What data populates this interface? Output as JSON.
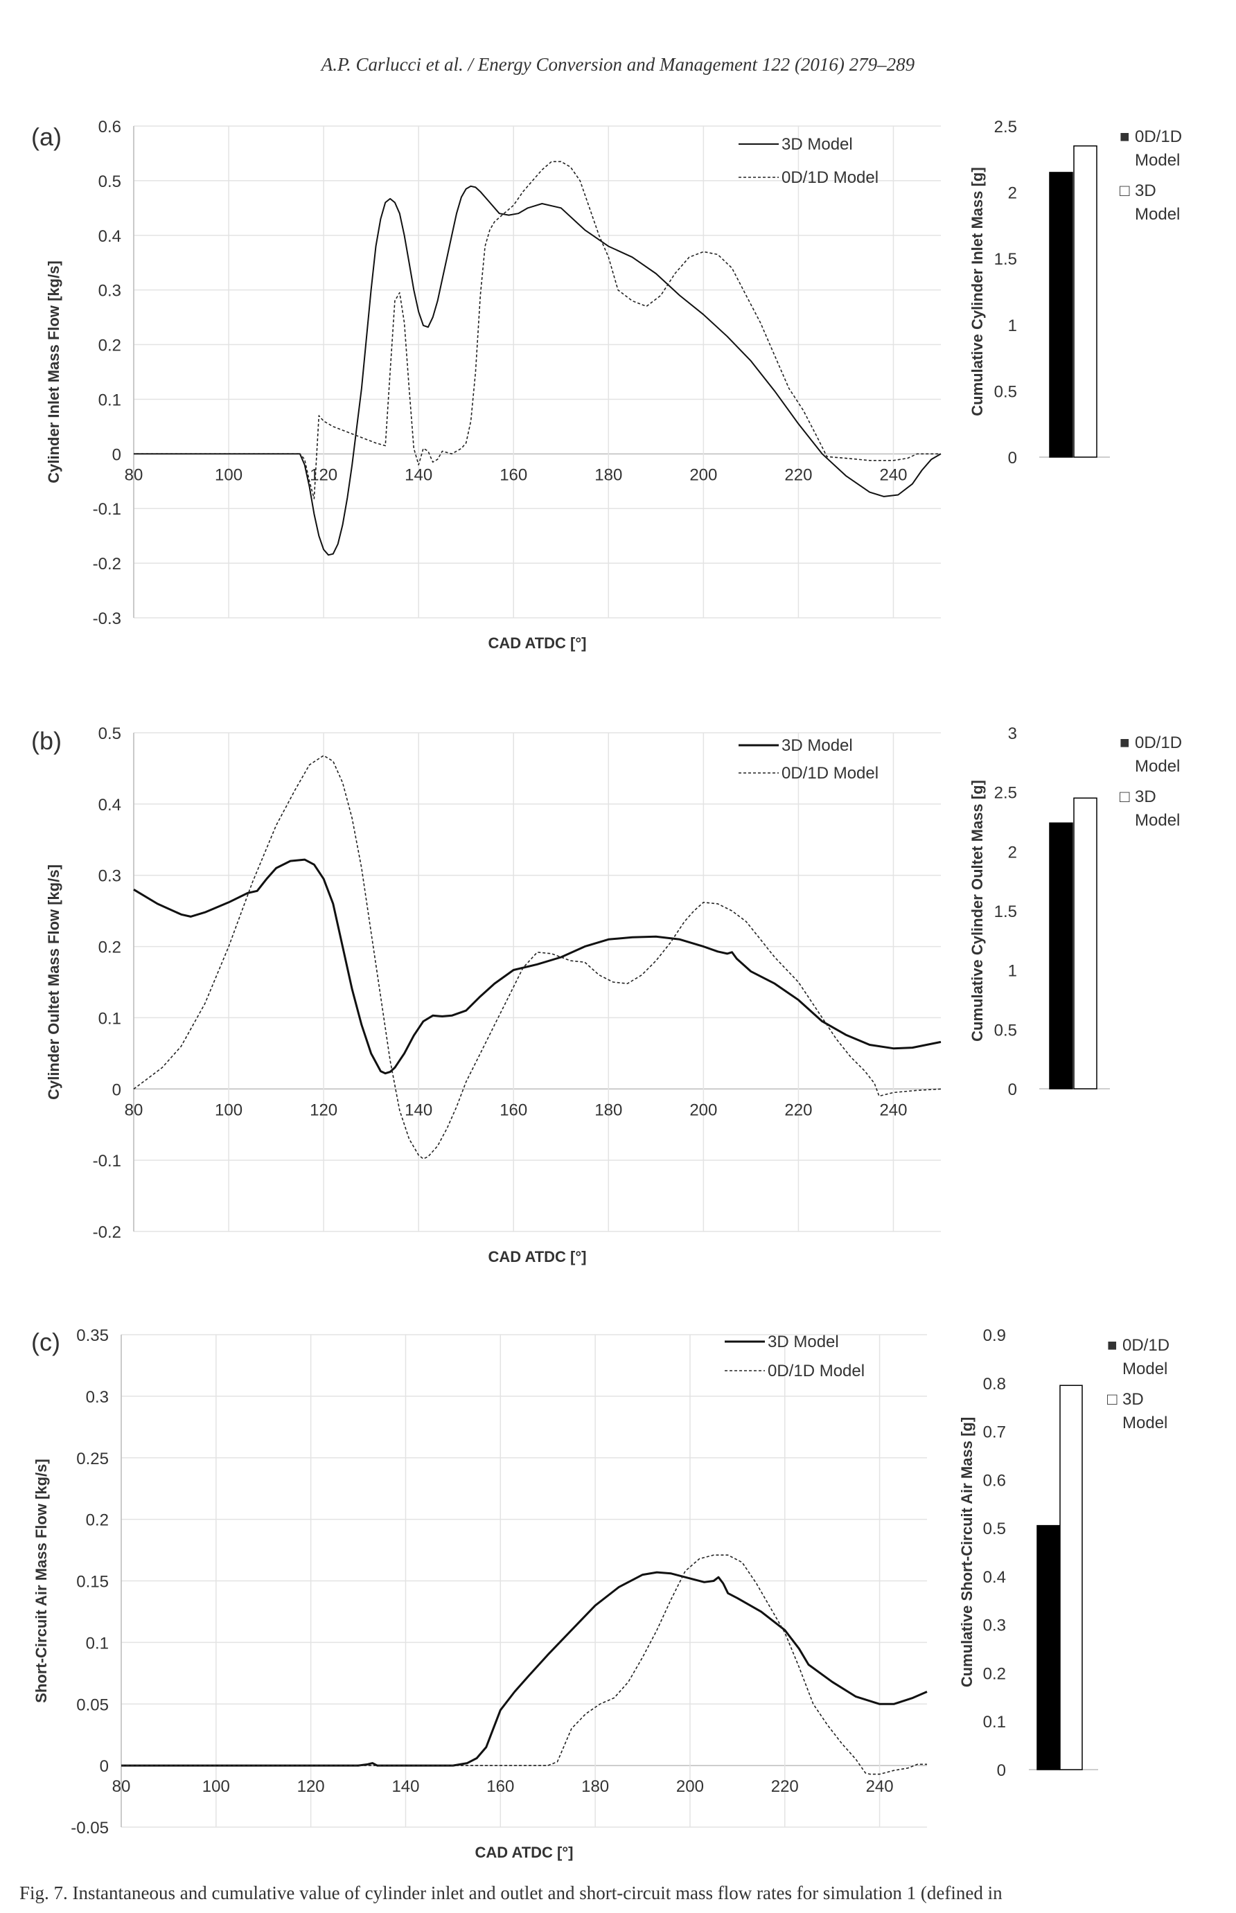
{
  "header": "A.P. Carlucci et al. / Energy Conversion and Management 122 (2016) 279–289",
  "caption": "Fig. 7. Instantaneous and cumulative value of cylinder inlet and outlet and short-circuit mass flow rates for simulation 1 (defined in",
  "colors": {
    "solid": "#111111",
    "dashed": "#222222",
    "bar_0d1d": "#000000",
    "bar_3d": "#ffffff",
    "grid": "#e3e3e3"
  },
  "chart_data": [
    {
      "type": "line",
      "panel_label": "(a)",
      "xlabel": "CAD ATDC [°]",
      "ylabel": "Cylinder Inlet Mass Flow [kg/s]",
      "xlim": [
        80,
        250
      ],
      "ylim": [
        -0.3,
        0.6
      ],
      "xticks": [
        80,
        100,
        120,
        140,
        160,
        180,
        200,
        220,
        240
      ],
      "yticks": [
        "-0.3",
        "-0.2",
        "-0.1",
        "0",
        "0.1",
        "0.2",
        "0.3",
        "0.4",
        "0.5",
        "0.6"
      ],
      "grid": true,
      "legend_position": "top-right",
      "series": [
        {
          "name": "3D Model",
          "style": "solid",
          "width": 2,
          "x": [
            80,
            115,
            116,
            117,
            118,
            119,
            120,
            121,
            122,
            123,
            124,
            125,
            126,
            128,
            130,
            131,
            132,
            133,
            134,
            135,
            136,
            137,
            138,
            139,
            140,
            141,
            142,
            143,
            144,
            145,
            146,
            147,
            148,
            149,
            150,
            151,
            152,
            153,
            155,
            157,
            159,
            161,
            163,
            166,
            170,
            175,
            180,
            185,
            190,
            195,
            200,
            205,
            210,
            215,
            220,
            225,
            230,
            235,
            238,
            241,
            244,
            246,
            248,
            250
          ],
          "y": [
            0,
            0,
            -0.02,
            -0.06,
            -0.11,
            -0.15,
            -0.175,
            -0.185,
            -0.183,
            -0.165,
            -0.13,
            -0.08,
            -0.02,
            0.12,
            0.3,
            0.38,
            0.43,
            0.46,
            0.467,
            0.46,
            0.44,
            0.4,
            0.35,
            0.3,
            0.26,
            0.235,
            0.232,
            0.25,
            0.28,
            0.32,
            0.36,
            0.4,
            0.44,
            0.47,
            0.485,
            0.49,
            0.488,
            0.48,
            0.46,
            0.44,
            0.437,
            0.44,
            0.45,
            0.458,
            0.45,
            0.41,
            0.38,
            0.36,
            0.33,
            0.29,
            0.255,
            0.215,
            0.17,
            0.115,
            0.055,
            0,
            -0.04,
            -0.07,
            -0.078,
            -0.075,
            -0.055,
            -0.03,
            -0.01,
            0
          ]
        },
        {
          "name": "0D/1D Model",
          "style": "dashed",
          "width": 1.6,
          "x": [
            80,
            115,
            116,
            117,
            118,
            119,
            120,
            121,
            122,
            125,
            128,
            131,
            133,
            134,
            135,
            136,
            137,
            138,
            139,
            140,
            141,
            142,
            143,
            144,
            145,
            147,
            149,
            150,
            151,
            152,
            153,
            154,
            155,
            156,
            158,
            160,
            162,
            164,
            166,
            168,
            170,
            172,
            174,
            176,
            178,
            180,
            182,
            185,
            188,
            191,
            194,
            197,
            200,
            203,
            206,
            209,
            212,
            215,
            218,
            221,
            224,
            226,
            230,
            235,
            240,
            243,
            245,
            250
          ],
          "y": [
            0,
            0,
            -0.01,
            -0.05,
            -0.082,
            0.07,
            0.06,
            0.055,
            0.05,
            0.04,
            0.03,
            0.02,
            0.015,
            0.15,
            0.28,
            0.295,
            0.24,
            0.12,
            0.01,
            -0.02,
            0.01,
            0.005,
            -0.015,
            -0.01,
            0.005,
            0,
            0.01,
            0.02,
            0.06,
            0.15,
            0.29,
            0.38,
            0.41,
            0.425,
            0.44,
            0.455,
            0.48,
            0.5,
            0.52,
            0.535,
            0.535,
            0.525,
            0.5,
            0.45,
            0.4,
            0.36,
            0.3,
            0.28,
            0.27,
            0.29,
            0.33,
            0.36,
            0.37,
            0.365,
            0.34,
            0.29,
            0.24,
            0.18,
            0.12,
            0.08,
            0.03,
            -0.005,
            -0.008,
            -0.012,
            -0.012,
            -0.008,
            0,
            0
          ]
        }
      ]
    },
    {
      "type": "bar",
      "ylabel": "Cumulative Cylinder Inlet Mass [g]",
      "ylim": [
        0,
        2.5
      ],
      "yticks": [
        "0",
        "0.5",
        "1",
        "1.5",
        "2",
        "2.5"
      ],
      "categories": [
        "0D/1D Model",
        "3D Model"
      ],
      "values": [
        2.15,
        2.35
      ],
      "legend": [
        {
          "marker": "■",
          "lines": [
            "0D/1D",
            "Model"
          ]
        },
        {
          "marker": "□",
          "lines": [
            "3D",
            "Model"
          ]
        }
      ]
    },
    {
      "type": "line",
      "panel_label": "(b)",
      "xlabel": "CAD ATDC [°]",
      "ylabel": "Cylinder Oultet Mass Flow [kg/s]",
      "xlim": [
        80,
        250
      ],
      "ylim": [
        -0.2,
        0.5
      ],
      "xticks": [
        80,
        100,
        120,
        140,
        160,
        180,
        200,
        220,
        240
      ],
      "yticks": [
        "-0.2",
        "-0.1",
        "0",
        "0.1",
        "0.2",
        "0.3",
        "0.4",
        "0.5"
      ],
      "grid": true,
      "legend_position": "top-right",
      "series": [
        {
          "name": "3D Model",
          "style": "solid",
          "width": 3,
          "x": [
            80,
            85,
            90,
            92,
            95,
            100,
            104,
            106,
            108,
            110,
            113,
            116,
            118,
            120,
            122,
            124,
            126,
            128,
            130,
            132,
            133,
            134,
            135,
            136,
            137,
            139,
            141,
            143,
            145,
            147,
            150,
            153,
            156,
            160,
            165,
            170,
            175,
            180,
            185,
            190,
            195,
            200,
            203,
            205,
            206,
            207,
            210,
            215,
            220,
            225,
            230,
            235,
            240,
            244,
            247,
            250
          ],
          "y": [
            0.28,
            0.26,
            0.245,
            0.242,
            0.248,
            0.262,
            0.275,
            0.278,
            0.295,
            0.31,
            0.32,
            0.322,
            0.315,
            0.295,
            0.26,
            0.2,
            0.14,
            0.09,
            0.05,
            0.025,
            0.022,
            0.024,
            0.03,
            0.04,
            0.05,
            0.075,
            0.095,
            0.103,
            0.102,
            0.103,
            0.11,
            0.13,
            0.148,
            0.167,
            0.175,
            0.185,
            0.2,
            0.21,
            0.213,
            0.214,
            0.21,
            0.2,
            0.193,
            0.19,
            0.192,
            0.183,
            0.165,
            0.148,
            0.125,
            0.095,
            0.076,
            0.062,
            0.057,
            0.058,
            0.062,
            0.066
          ]
        },
        {
          "name": "0D/1D Model",
          "style": "dashed",
          "width": 1.6,
          "x": [
            80,
            83,
            86,
            90,
            95,
            100,
            105,
            110,
            114,
            117,
            120,
            122,
            124,
            126,
            128,
            130,
            132,
            134,
            136,
            138,
            140,
            141,
            142,
            144,
            146,
            148,
            150,
            153,
            156,
            159,
            162,
            165,
            168,
            172,
            175,
            178,
            181,
            184,
            187,
            190,
            193,
            196,
            198,
            200,
            203,
            206,
            209,
            212,
            215,
            220,
            225,
            228,
            231,
            234,
            236,
            237,
            240,
            245,
            250
          ],
          "y": [
            0,
            0.015,
            0.03,
            0.06,
            0.12,
            0.2,
            0.29,
            0.37,
            0.42,
            0.455,
            0.468,
            0.46,
            0.43,
            0.38,
            0.31,
            0.22,
            0.13,
            0.04,
            -0.03,
            -0.07,
            -0.093,
            -0.098,
            -0.095,
            -0.08,
            -0.055,
            -0.025,
            0.01,
            0.05,
            0.09,
            0.13,
            0.17,
            0.192,
            0.19,
            0.18,
            0.178,
            0.16,
            0.15,
            0.148,
            0.16,
            0.18,
            0.205,
            0.235,
            0.25,
            0.262,
            0.26,
            0.25,
            0.235,
            0.21,
            0.185,
            0.15,
            0.1,
            0.07,
            0.045,
            0.025,
            0.008,
            -0.01,
            -0.005,
            -0.002,
            0
          ]
        }
      ]
    },
    {
      "type": "bar",
      "ylabel": "Cumulative Cylinder Oultet Mass [g]",
      "ylim": [
        0,
        3
      ],
      "yticks": [
        "0",
        "0.5",
        "1",
        "1.5",
        "2",
        "2.5",
        "3"
      ],
      "categories": [
        "0D/1D Model",
        "3D Model"
      ],
      "values": [
        2.24,
        2.45
      ],
      "legend": [
        {
          "marker": "■",
          "lines": [
            "0D/1D",
            "Model"
          ]
        },
        {
          "marker": "□",
          "lines": [
            "3D",
            "Model"
          ]
        }
      ]
    },
    {
      "type": "line",
      "panel_label": "(c)",
      "xlabel": "CAD ATDC [°]",
      "ylabel": "Short-Circuit Air Mass Flow [kg/s]",
      "xlim": [
        80,
        250
      ],
      "ylim": [
        -0.05,
        0.35
      ],
      "xticks": [
        80,
        100,
        120,
        140,
        160,
        180,
        200,
        220,
        240
      ],
      "yticks": [
        "-0.05",
        "0",
        "0.05",
        "0.1",
        "0.15",
        "0.2",
        "0.25",
        "0.3",
        "0.35"
      ],
      "grid": true,
      "legend_position": "top-right",
      "series": [
        {
          "name": "3D Model",
          "style": "solid",
          "width": 3,
          "x": [
            80,
            130,
            132,
            133,
            134,
            136,
            150,
            153,
            155,
            157,
            158,
            160,
            163,
            166,
            170,
            175,
            180,
            185,
            190,
            193,
            196,
            200,
            203,
            205,
            206,
            207,
            208,
            210,
            215,
            220,
            223,
            225,
            230,
            235,
            240,
            243,
            247,
            250
          ],
          "y": [
            0,
            0,
            0.001,
            0.002,
            0,
            0,
            0,
            0.002,
            0.006,
            0.015,
            0.025,
            0.045,
            0.06,
            0.073,
            0.09,
            0.11,
            0.13,
            0.145,
            0.155,
            0.157,
            0.156,
            0.152,
            0.149,
            0.15,
            0.153,
            0.148,
            0.14,
            0.136,
            0.125,
            0.11,
            0.095,
            0.082,
            0.068,
            0.056,
            0.05,
            0.05,
            0.055,
            0.06
          ]
        },
        {
          "name": "0D/1D Model",
          "style": "dashed",
          "width": 1.6,
          "x": [
            80,
            170,
            172,
            175,
            178,
            181,
            184,
            187,
            190,
            193,
            196,
            199,
            202,
            205,
            208,
            211,
            214,
            217,
            220,
            223,
            226,
            229,
            232,
            235,
            237,
            238,
            240,
            243,
            246,
            248,
            250
          ],
          "y": [
            0,
            0,
            0.003,
            0.03,
            0.042,
            0.05,
            0.055,
            0.068,
            0.088,
            0.11,
            0.135,
            0.158,
            0.168,
            0.171,
            0.171,
            0.165,
            0.148,
            0.128,
            0.108,
            0.08,
            0.05,
            0.033,
            0.018,
            0.005,
            -0.006,
            -0.007,
            -0.007,
            -0.004,
            -0.002,
            0.001,
            0.001
          ]
        }
      ]
    },
    {
      "type": "bar",
      "ylabel": "Cumulative Short-Circuit Air Mass [g]",
      "ylim": [
        0,
        0.9
      ],
      "yticks": [
        "0",
        "0.1",
        "0.2",
        "0.3",
        "0.4",
        "0.5",
        "0.6",
        "0.7",
        "0.8",
        "0.9"
      ],
      "categories": [
        "0D/1D Model",
        "3D Model"
      ],
      "values": [
        0.505,
        0.795
      ],
      "legend": [
        {
          "marker": "■",
          "lines": [
            "0D/1D",
            "Model"
          ]
        },
        {
          "marker": "□",
          "lines": [
            "3D",
            "Model"
          ]
        }
      ]
    }
  ]
}
